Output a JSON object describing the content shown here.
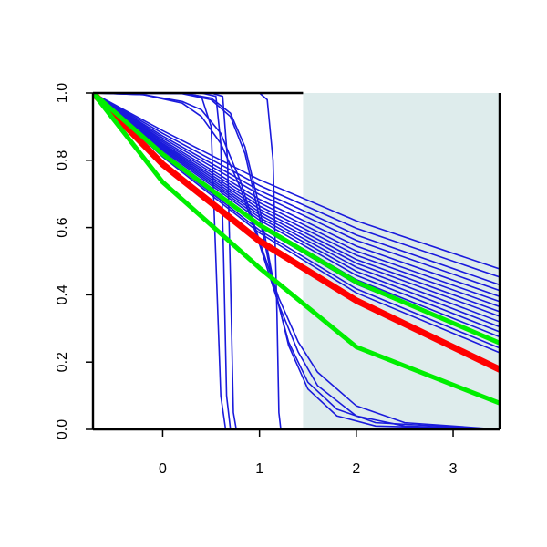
{
  "chart_data": {
    "type": "line",
    "title": "",
    "xlabel": "",
    "ylabel": "",
    "xlim": [
      -0.72,
      3.48
    ],
    "ylim": [
      0.0,
      1.0
    ],
    "x_ticks": [
      0,
      1,
      2,
      3
    ],
    "x_tick_labels": [
      "0",
      "1",
      "2",
      "3"
    ],
    "y_ticks": [
      0.0,
      0.2,
      0.4,
      0.6,
      0.8,
      1.0
    ],
    "y_tick_labels": [
      "0.0",
      "0.2",
      "0.4",
      "0.6",
      "0.8",
      "1.0"
    ],
    "grid": false,
    "legend": "none",
    "shaded_region": {
      "x_from": 1.45,
      "x_to": 3.48,
      "color": "#deecec"
    },
    "top_baseline_segment": {
      "x_from": -0.72,
      "x_to": 1.45,
      "y": 1.0
    },
    "colors": {
      "blue": "#1a1adc",
      "red": "#ff0000",
      "green": "#00ee00",
      "shade": "#deecec"
    },
    "series": [
      {
        "color": "#1a1adc",
        "width": 1.6,
        "x": [
          -0.72,
          0.0,
          1.0,
          2.0,
          3.48
        ],
        "y": [
          1.0,
          0.888,
          0.742,
          0.62,
          0.477
        ]
      },
      {
        "color": "#1a1adc",
        "width": 1.6,
        "x": [
          -0.72,
          0.0,
          1.0,
          2.0,
          3.48
        ],
        "y": [
          1.0,
          0.88,
          0.725,
          0.598,
          0.453
        ]
      },
      {
        "color": "#1a1adc",
        "width": 1.6,
        "x": [
          -0.72,
          0.0,
          1.0,
          2.0,
          3.48
        ],
        "y": [
          1.0,
          0.872,
          0.71,
          0.578,
          0.43
        ]
      },
      {
        "color": "#1a1adc",
        "width": 1.6,
        "x": [
          -0.72,
          0.0,
          1.0,
          2.0,
          3.48
        ],
        "y": [
          1.0,
          0.866,
          0.698,
          0.562,
          0.413
        ]
      },
      {
        "color": "#1a1adc",
        "width": 1.6,
        "x": [
          -0.72,
          0.0,
          1.0,
          2.0,
          3.48
        ],
        "y": [
          1.0,
          0.86,
          0.684,
          0.545,
          0.395
        ]
      },
      {
        "color": "#1a1adc",
        "width": 1.6,
        "x": [
          -0.72,
          0.0,
          1.0,
          2.0,
          3.48
        ],
        "y": [
          1.0,
          0.855,
          0.674,
          0.53,
          0.38
        ]
      },
      {
        "color": "#1a1adc",
        "width": 1.6,
        "x": [
          -0.72,
          0.0,
          1.0,
          2.0,
          3.48
        ],
        "y": [
          1.0,
          0.85,
          0.664,
          0.518,
          0.365
        ]
      },
      {
        "color": "#1a1adc",
        "width": 1.6,
        "x": [
          -0.72,
          0.0,
          1.0,
          2.0,
          3.48
        ],
        "y": [
          1.0,
          0.846,
          0.655,
          0.505,
          0.35
        ]
      },
      {
        "color": "#1a1adc",
        "width": 1.6,
        "x": [
          -0.72,
          0.0,
          1.0,
          2.0,
          3.48
        ],
        "y": [
          1.0,
          0.842,
          0.646,
          0.494,
          0.336
        ]
      },
      {
        "color": "#1a1adc",
        "width": 1.6,
        "x": [
          -0.72,
          0.0,
          1.0,
          2.0,
          3.48
        ],
        "y": [
          1.0,
          0.838,
          0.638,
          0.482,
          0.32
        ]
      },
      {
        "color": "#1a1adc",
        "width": 1.6,
        "x": [
          -0.72,
          0.0,
          1.0,
          2.0,
          3.48
        ],
        "y": [
          1.0,
          0.834,
          0.63,
          0.47,
          0.305
        ]
      },
      {
        "color": "#1a1adc",
        "width": 1.6,
        "x": [
          -0.72,
          0.0,
          1.0,
          2.0,
          3.48
        ],
        "y": [
          1.0,
          0.83,
          0.622,
          0.458,
          0.29
        ]
      },
      {
        "color": "#1a1adc",
        "width": 1.6,
        "x": [
          -0.72,
          0.0,
          1.0,
          2.0,
          3.48
        ],
        "y": [
          1.0,
          0.825,
          0.612,
          0.445,
          0.275
        ]
      },
      {
        "color": "#1a1adc",
        "width": 1.6,
        "x": [
          -0.72,
          0.0,
          1.0,
          2.0,
          3.48
        ],
        "y": [
          1.0,
          0.82,
          0.602,
          0.432,
          0.258
        ]
      },
      {
        "color": "#1a1adc",
        "width": 1.6,
        "x": [
          -0.72,
          0.0,
          1.0,
          2.0,
          3.48
        ],
        "y": [
          1.0,
          0.815,
          0.592,
          0.418,
          0.242
        ]
      },
      {
        "color": "#1a1adc",
        "width": 1.6,
        "x": [
          -0.72,
          0.0,
          1.0,
          2.0,
          3.48
        ],
        "y": [
          1.0,
          0.81,
          0.584,
          0.406,
          0.228
        ]
      },
      {
        "color": "#1a1adc",
        "width": 1.6,
        "x": [
          -0.72,
          0.2,
          0.4,
          0.5,
          0.55,
          0.6,
          0.65,
          3.48
        ],
        "y": [
          1.0,
          1.0,
          0.99,
          0.9,
          0.5,
          0.1,
          0.0,
          0.0
        ]
      },
      {
        "color": "#1a1adc",
        "width": 1.6,
        "x": [
          -0.72,
          0.4,
          0.55,
          0.6,
          0.63,
          0.66,
          0.7,
          3.48
        ],
        "y": [
          1.0,
          1.0,
          0.99,
          0.85,
          0.5,
          0.1,
          0.0,
          0.0
        ]
      },
      {
        "color": "#1a1adc",
        "width": 1.6,
        "x": [
          -0.72,
          0.5,
          0.62,
          0.67,
          0.7,
          0.73,
          0.76,
          3.48
        ],
        "y": [
          1.0,
          1.0,
          0.99,
          0.8,
          0.45,
          0.05,
          0.0,
          0.0
        ]
      },
      {
        "color": "#1a1adc",
        "width": 1.6,
        "x": [
          -0.72,
          1.0,
          1.08,
          1.14,
          1.18,
          1.2,
          1.22,
          3.48
        ],
        "y": [
          1.0,
          1.0,
          0.98,
          0.8,
          0.35,
          0.05,
          0.0,
          0.0
        ]
      },
      {
        "color": "#1a1adc",
        "width": 1.6,
        "x": [
          -0.72,
          -0.2,
          0.2,
          0.4,
          0.6,
          0.8,
          1.0,
          1.2,
          1.4,
          1.6,
          2.0,
          2.5,
          3.48
        ],
        "y": [
          1.0,
          0.995,
          0.97,
          0.93,
          0.85,
          0.72,
          0.55,
          0.37,
          0.23,
          0.13,
          0.04,
          0.01,
          0.0
        ]
      },
      {
        "color": "#1a1adc",
        "width": 1.6,
        "x": [
          -0.72,
          -0.2,
          0.2,
          0.4,
          0.6,
          0.8,
          1.0,
          1.2,
          1.4,
          1.6,
          2.0,
          2.5,
          3.48
        ],
        "y": [
          1.0,
          0.995,
          0.975,
          0.95,
          0.88,
          0.74,
          0.56,
          0.39,
          0.26,
          0.17,
          0.07,
          0.02,
          0.0
        ]
      },
      {
        "color": "#1a1adc",
        "width": 1.6,
        "x": [
          -0.72,
          0.2,
          0.5,
          0.7,
          0.85,
          1.0,
          1.15,
          1.3,
          1.5,
          1.8,
          2.2,
          3.48
        ],
        "y": [
          1.0,
          1.0,
          0.985,
          0.94,
          0.84,
          0.66,
          0.43,
          0.25,
          0.12,
          0.04,
          0.01,
          0.0
        ]
      },
      {
        "color": "#1a1adc",
        "width": 1.6,
        "x": [
          -0.72,
          0.2,
          0.5,
          0.7,
          0.85,
          1.0,
          1.15,
          1.3,
          1.5,
          1.8,
          2.2,
          3.48
        ],
        "y": [
          1.0,
          0.998,
          0.98,
          0.93,
          0.82,
          0.63,
          0.42,
          0.26,
          0.14,
          0.06,
          0.02,
          0.0
        ]
      },
      {
        "color": "#ff0000",
        "width": 7,
        "x": [
          -0.72,
          0.0,
          1.0,
          2.0,
          3.48
        ],
        "y": [
          1.0,
          0.788,
          0.56,
          0.383,
          0.178
        ]
      },
      {
        "color": "#00ee00",
        "width": 5,
        "x": [
          -0.72,
          0.0,
          1.0,
          2.0,
          3.48
        ],
        "y": [
          1.0,
          0.818,
          0.608,
          0.438,
          0.257
        ]
      },
      {
        "color": "#00ee00",
        "width": 5,
        "x": [
          -0.72,
          0.0,
          1.0,
          2.0,
          3.48
        ],
        "y": [
          1.0,
          0.735,
          0.48,
          0.245,
          0.078
        ]
      }
    ]
  }
}
